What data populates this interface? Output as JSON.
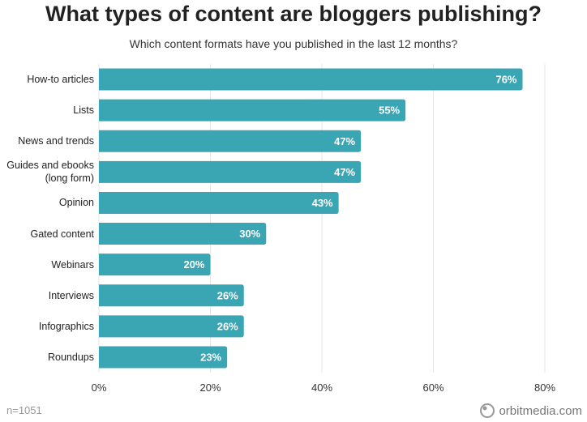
{
  "chart_data": {
    "type": "bar",
    "orientation": "horizontal",
    "title": "What types of content are bloggers publishing?",
    "subtitle": "Which content formats have you published in the last 12 months?",
    "categories": [
      "How-to articles",
      "Lists",
      "News and trends",
      "Guides and ebooks (long form)",
      "Opinion",
      "Gated content",
      "Webinars",
      "Interviews",
      "Infographics",
      "Roundups"
    ],
    "values": [
      76,
      55,
      47,
      47,
      43,
      30,
      20,
      26,
      26,
      23
    ],
    "value_labels": [
      "76%",
      "55%",
      "47%",
      "47%",
      "43%",
      "30%",
      "20%",
      "26%",
      "26%",
      "23%"
    ],
    "color": "#3aa5b3",
    "xlim": [
      0,
      80
    ],
    "xticks": [
      {
        "value": 0,
        "label": "0%"
      },
      {
        "value": 20,
        "label": "20%"
      },
      {
        "value": 40,
        "label": "40%"
      },
      {
        "value": 60,
        "label": "60%"
      },
      {
        "value": 80,
        "label": "80%"
      }
    ],
    "grid": true,
    "note": "n=1051",
    "source": "orbitmedia.com"
  }
}
